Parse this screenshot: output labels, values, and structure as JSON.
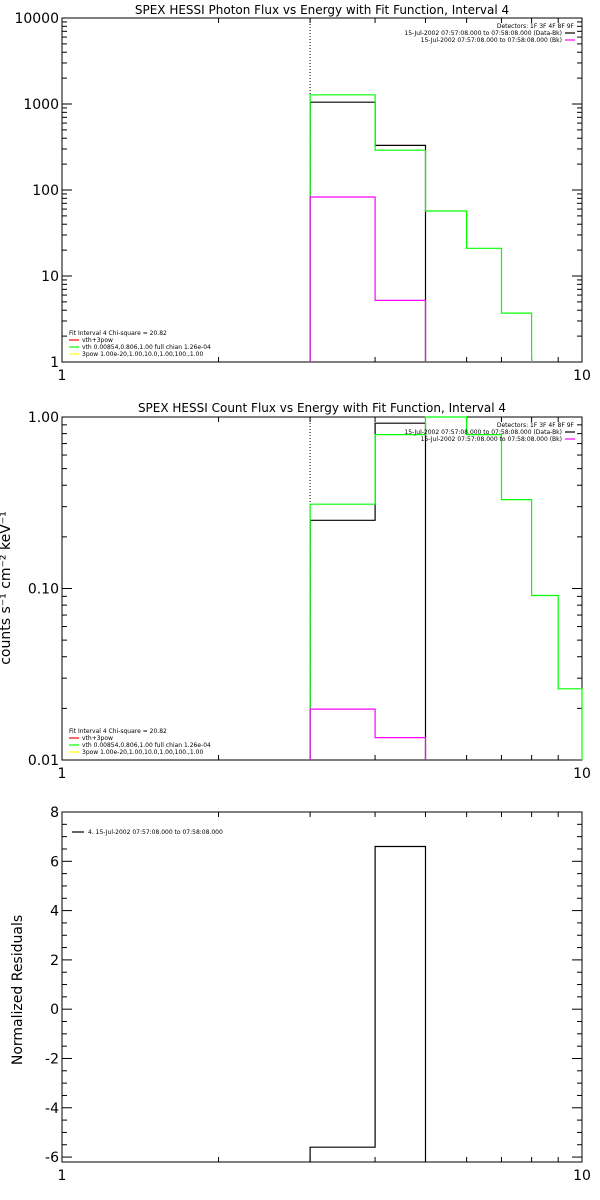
{
  "chart_data": [
    {
      "type": "line",
      "title": "SPEX HESSI Photon Flux vs Energy with Fit Function, Interval 4",
      "xlabel": "",
      "ylabel": "",
      "xscale": "log",
      "yscale": "log",
      "xlim": [
        1,
        10
      ],
      "ylim": [
        1,
        10000
      ],
      "xticks": [
        {
          "v": 1,
          "t": "1"
        },
        {
          "v": 10,
          "t": "10"
        }
      ],
      "yticks": [
        {
          "v": 1,
          "t": "1"
        },
        {
          "v": 10,
          "t": "10"
        },
        {
          "v": 100,
          "t": "100"
        },
        {
          "v": 1000,
          "t": "1000"
        },
        {
          "v": 10000,
          "t": "10000"
        }
      ],
      "vline": 3.0,
      "top_right_legend": [
        {
          "text": "Detectors: 1F 3F 4F 8F 9F",
          "color": "none"
        },
        {
          "text": "15-Jul-2002 07:57:08.000 to 07:58:08.000 (Data-Bk)",
          "color": "#000000"
        },
        {
          "text": "15-Jul-2002 07:57:08.000 to 07:58:08.000 (Bk)",
          "color": "#ff00ff"
        }
      ],
      "fit_legend": [
        {
          "text": "Fit Interval  4    Chi-square = 20.82",
          "color": "none"
        },
        {
          "text": "vth+3pow",
          "color": "#ff0000"
        },
        {
          "text": "vth 0.00854,0.806,1.00   full chian 1.26e-04",
          "color": "#00ff00"
        },
        {
          "text": "3pow 1.00e-20,1.00,10.0,1.00,100.,1.00",
          "color": "#ffff00"
        }
      ],
      "series": [
        {
          "color": "#000000",
          "bins": [
            [
              3.0,
              4.0,
              1050
            ],
            [
              4.0,
              5.0,
              330
            ]
          ]
        },
        {
          "color": "#00ff00",
          "bins": [
            [
              3.0,
              4.0,
              1280
            ],
            [
              4.0,
              5.0,
              290
            ],
            [
              5.0,
              6.0,
              57
            ],
            [
              6.0,
              7.0,
              21
            ],
            [
              7.0,
              8.0,
              3.7
            ]
          ]
        },
        {
          "color": "#ff00ff",
          "bins": [
            [
              3.0,
              4.0,
              83
            ],
            [
              4.0,
              5.0,
              5.2
            ]
          ]
        }
      ]
    },
    {
      "type": "line",
      "title": "SPEX HESSI Count Flux vs Energy with Fit Function, Interval 4",
      "xlabel": "",
      "ylabel": "counts s⁻¹ cm⁻² keV⁻¹",
      "xscale": "log",
      "yscale": "log",
      "xlim": [
        1,
        10
      ],
      "ylim": [
        0.01,
        1.0
      ],
      "xticks": [
        {
          "v": 1,
          "t": "1"
        },
        {
          "v": 10,
          "t": "10"
        }
      ],
      "yticks": [
        {
          "v": 0.01,
          "t": "0.01"
        },
        {
          "v": 0.1,
          "t": "0.10"
        },
        {
          "v": 1.0,
          "t": "1.00"
        }
      ],
      "vline": 3.0,
      "top_right_legend": [
        {
          "text": "Detectors: 1F 3F 4F 8F 9F",
          "color": "none"
        },
        {
          "text": "15-Jul-2002 07:57:08.000 to 07:58:08.000 (Data-Bk)",
          "color": "#000000"
        },
        {
          "text": "15-Jul-2002 07:57:08.000 to 07:58:08.000 (Bk)",
          "color": "#ff00ff"
        }
      ],
      "fit_legend": [
        {
          "text": "Fit Interval  4    Chi-square = 20.82",
          "color": "none"
        },
        {
          "text": "vth+3pow",
          "color": "#ff0000"
        },
        {
          "text": "vth 0.00854,0.806,1.00   full chian 1.26e-04",
          "color": "#00ff00"
        },
        {
          "text": "3pow 1.00e-20,1.00,10.0,1.00,100.,1.00",
          "color": "#ffff00"
        }
      ],
      "series": [
        {
          "color": "#000000",
          "bins": [
            [
              3.0,
              4.0,
              0.25
            ],
            [
              4.0,
              5.0,
              0.92
            ]
          ]
        },
        {
          "color": "#00ff00",
          "bins": [
            [
              3.0,
              4.0,
              0.31
            ],
            [
              4.0,
              5.0,
              0.79
            ],
            [
              5.0,
              6.0,
              1.0
            ],
            [
              6.0,
              7.0,
              0.79
            ],
            [
              7.0,
              8.0,
              0.33
            ],
            [
              8.0,
              9.0,
              0.091
            ],
            [
              9.0,
              10.0,
              0.026
            ]
          ]
        },
        {
          "color": "#ff00ff",
          "bins": [
            [
              3.0,
              4.0,
              0.0198
            ],
            [
              4.0,
              5.0,
              0.0135
            ]
          ]
        }
      ]
    },
    {
      "type": "line",
      "title": "",
      "xlabel": "",
      "ylabel": "Normalized Residuals",
      "xscale": "log",
      "yscale": "linear",
      "xlim": [
        1,
        10
      ],
      "ylim": [
        -6.2,
        8
      ],
      "xticks": [
        {
          "v": 1,
          "t": "1"
        },
        {
          "v": 10,
          "t": "10"
        }
      ],
      "yticks": [
        {
          "v": -6,
          "t": "-6"
        },
        {
          "v": -4,
          "t": "-4"
        },
        {
          "v": -2,
          "t": "-2"
        },
        {
          "v": 0,
          "t": "0"
        },
        {
          "v": 2,
          "t": "2"
        },
        {
          "v": 4,
          "t": "4"
        },
        {
          "v": 6,
          "t": "6"
        },
        {
          "v": 8,
          "t": "8"
        }
      ],
      "vline": null,
      "top_right_legend": [],
      "top_left_legend": [
        {
          "text": "4. 15-Jul-2002 07:57:08.000 to 07:58:08.000",
          "color": "#000000"
        }
      ],
      "fit_legend": [],
      "series": [
        {
          "color": "#000000",
          "bins": [
            [
              3.0,
              4.0,
              -5.6
            ],
            [
              4.0,
              5.0,
              6.6
            ]
          ]
        }
      ]
    }
  ]
}
